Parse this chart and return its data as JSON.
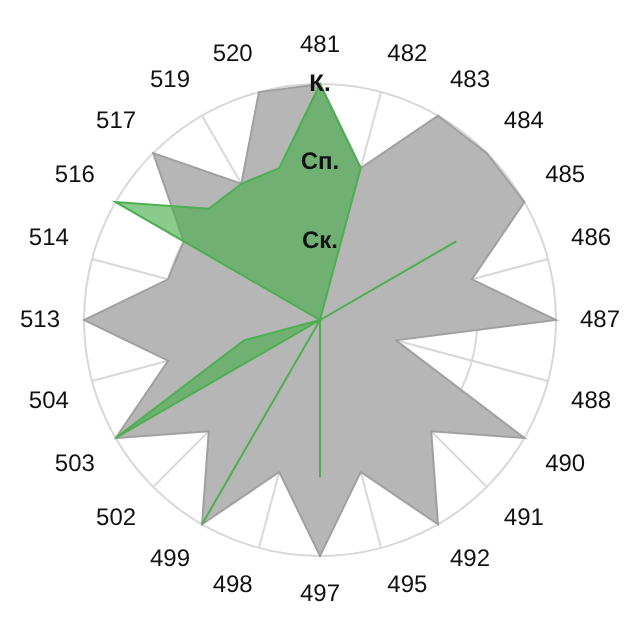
{
  "chart_data": {
    "type": "radar",
    "categories": [
      "481",
      "482",
      "483",
      "484",
      "485",
      "486",
      "487",
      "488",
      "490",
      "491",
      "492",
      "495",
      "497",
      "498",
      "499",
      "502",
      "503",
      "504",
      "513",
      "514",
      "516",
      "517",
      "519",
      "520"
    ],
    "series": [
      {
        "color": "#a0a0a0",
        "values": [
          3,
          2,
          3,
          3,
          3,
          2,
          3,
          1,
          3,
          2,
          3,
          2,
          3,
          2,
          3,
          2,
          3,
          2,
          3,
          2,
          2,
          3,
          2,
          3
        ]
      },
      {
        "color": "#4caf50",
        "values": [
          3,
          2,
          0,
          0,
          2,
          0,
          0,
          0,
          0,
          0,
          0,
          0,
          2,
          0,
          3,
          0,
          3,
          1,
          0,
          0,
          3,
          2,
          2,
          2
        ]
      }
    ],
    "ylim": [
      0,
      3
    ],
    "yticks": [
      {
        "value": 1,
        "label": "Ск."
      },
      {
        "value": 2,
        "label": "Сп."
      },
      {
        "value": 3,
        "label": "К."
      }
    ],
    "grid": true,
    "legend": false,
    "marker": "none"
  }
}
